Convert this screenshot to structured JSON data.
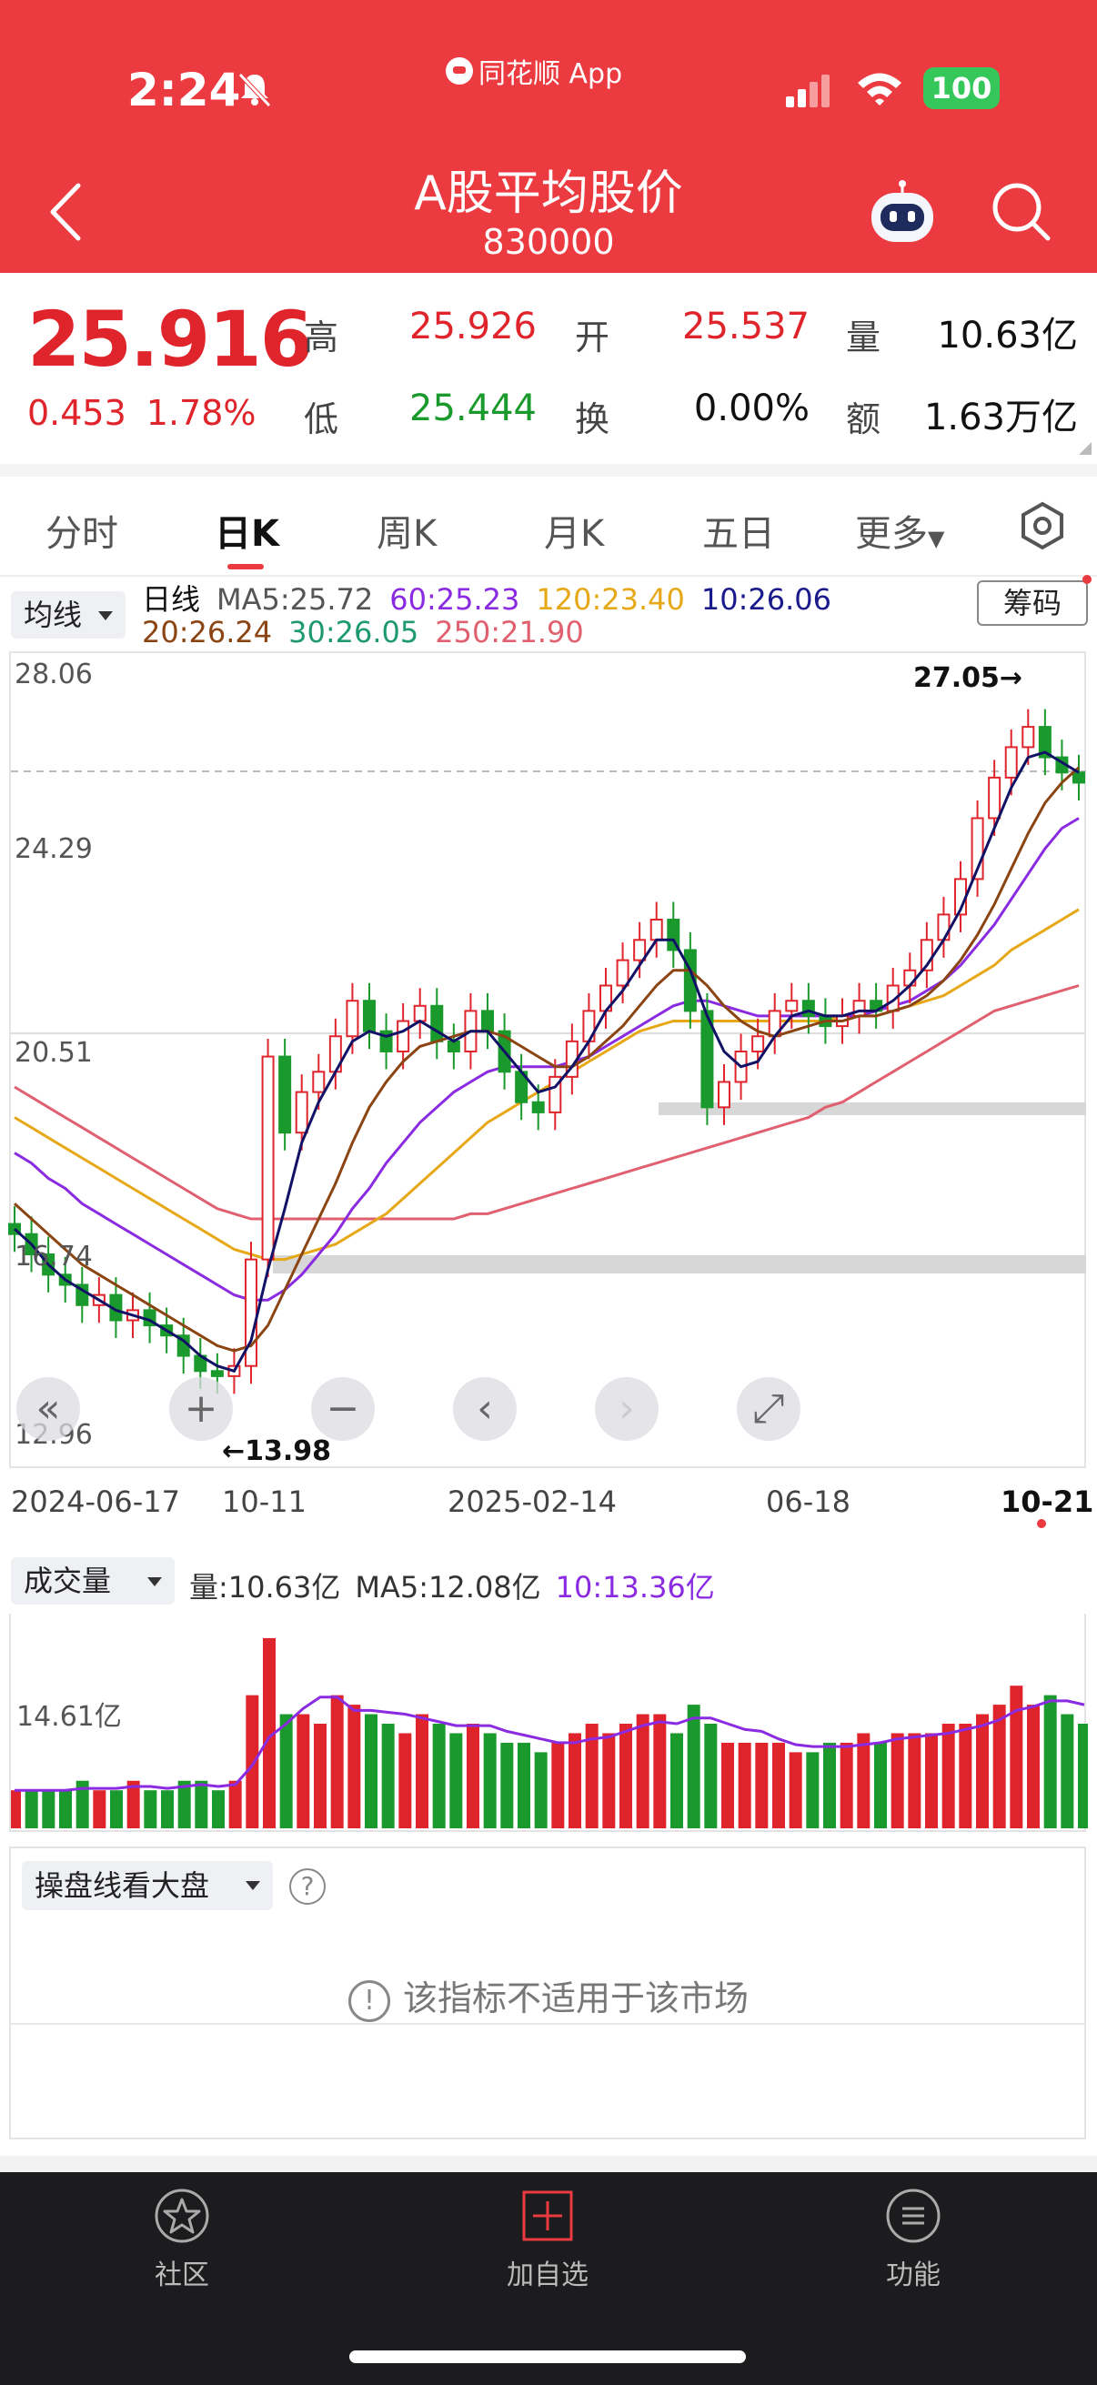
{
  "status_bar": {
    "time": "2:24",
    "app_name": "同花顺 App",
    "battery": "100"
  },
  "header": {
    "title": "A股平均股价",
    "code": "830000"
  },
  "quote": {
    "price": "25.916",
    "change_amount": "0.453",
    "change_percent": "1.78%",
    "high_label": "高",
    "high": "25.926",
    "low_label": "低",
    "low": "25.444",
    "open_label": "开",
    "open": "25.537",
    "turnover_label": "换",
    "turnover": "0.00%",
    "volume_label": "量",
    "volume": "10.63亿",
    "amount_label": "额",
    "amount": "1.63万亿"
  },
  "tabs": [
    "分时",
    "日K",
    "周K",
    "月K",
    "五日",
    "更多"
  ],
  "active_tab": "日K",
  "ma_legend": {
    "selector": "均线",
    "period": "日线",
    "ma5": "MA5:25.72",
    "ma60": "60:25.23",
    "ma120": "120:23.40",
    "ma10": "10:26.06",
    "ma20": "20:26.24",
    "ma30": "30:26.05",
    "ma250": "250:21.90",
    "chip_button": "筹码"
  },
  "colors": {
    "accent": "#ec3a41",
    "up": "#e0242b",
    "down": "#1a9a2c",
    "ma5": "#111166",
    "ma10": "#1a1a8c",
    "ma20": "#8b4513",
    "ma30": "#1e9a6e",
    "ma60": "#8a2be2",
    "ma120": "#e6a817",
    "ma250": "#e06070"
  },
  "chart_data": {
    "type": "candlestick",
    "price_ticks": [
      "28.06",
      "24.29",
      "20.51",
      "16.74",
      "12.96"
    ],
    "ylim": [
      12.96,
      28.06
    ],
    "x_labels": [
      "2024-06-17",
      "10-11",
      "2025-02-14",
      "06-18",
      "10-21"
    ],
    "annotations": {
      "high": "27.05→",
      "low": "←13.98"
    },
    "close_series": [
      17.0,
      16.6,
      16.2,
      16.0,
      15.6,
      15.8,
      15.3,
      15.5,
      15.2,
      15.0,
      14.6,
      14.3,
      14.2,
      14.4,
      16.5,
      20.5,
      19.0,
      19.8,
      20.2,
      20.9,
      21.6,
      21.0,
      20.6,
      21.2,
      21.5,
      20.8,
      20.6,
      21.4,
      21.0,
      20.2,
      19.6,
      19.4,
      20.1,
      20.8,
      21.4,
      21.9,
      22.4,
      22.8,
      23.2,
      22.6,
      21.4,
      19.5,
      20.0,
      20.6,
      20.9,
      21.4,
      21.6,
      21.3,
      21.1,
      21.3,
      21.6,
      21.4,
      21.9,
      22.2,
      22.8,
      23.3,
      24.0,
      25.2,
      26.0,
      26.6,
      27.0,
      26.4,
      26.1,
      25.9
    ],
    "ma5_series": [
      17.1,
      16.8,
      16.4,
      16.1,
      15.9,
      15.7,
      15.5,
      15.4,
      15.3,
      15.1,
      14.9,
      14.6,
      14.4,
      14.3,
      14.9,
      16.3,
      17.5,
      18.8,
      19.6,
      20.2,
      20.8,
      21.0,
      20.9,
      21.0,
      21.2,
      21.0,
      20.8,
      21.0,
      21.0,
      20.6,
      20.2,
      19.8,
      19.9,
      20.3,
      20.8,
      21.4,
      21.8,
      22.3,
      22.8,
      22.8,
      22.2,
      21.3,
      20.6,
      20.3,
      20.4,
      20.9,
      21.3,
      21.4,
      21.3,
      21.3,
      21.4,
      21.4,
      21.6,
      21.9,
      22.3,
      22.8,
      23.4,
      24.2,
      25.0,
      25.8,
      26.4,
      26.5,
      26.3,
      26.1
    ],
    "ma20_series": [
      17.6,
      17.3,
      17.0,
      16.7,
      16.4,
      16.2,
      16.0,
      15.8,
      15.6,
      15.4,
      15.2,
      15.0,
      14.8,
      14.7,
      14.8,
      15.2,
      15.9,
      16.6,
      17.3,
      18.0,
      18.8,
      19.5,
      20.0,
      20.4,
      20.7,
      20.8,
      20.9,
      21.0,
      21.0,
      20.9,
      20.7,
      20.5,
      20.3,
      20.3,
      20.5,
      20.8,
      21.1,
      21.5,
      21.9,
      22.2,
      22.2,
      21.9,
      21.5,
      21.2,
      21.0,
      20.9,
      21.0,
      21.1,
      21.2,
      21.2,
      21.3,
      21.3,
      21.4,
      21.5,
      21.7,
      22.0,
      22.4,
      22.9,
      23.5,
      24.2,
      24.9,
      25.5,
      25.9,
      26.2
    ],
    "ma60_series": [
      18.6,
      18.4,
      18.1,
      17.9,
      17.6,
      17.4,
      17.2,
      17.0,
      16.8,
      16.6,
      16.4,
      16.2,
      16.0,
      15.8,
      15.7,
      15.7,
      15.9,
      16.2,
      16.6,
      17.0,
      17.5,
      17.9,
      18.4,
      18.8,
      19.2,
      19.5,
      19.8,
      20.0,
      20.2,
      20.3,
      20.3,
      20.3,
      20.3,
      20.4,
      20.5,
      20.7,
      20.9,
      21.1,
      21.3,
      21.5,
      21.6,
      21.6,
      21.5,
      21.4,
      21.3,
      21.3,
      21.3,
      21.3,
      21.3,
      21.3,
      21.3,
      21.4,
      21.5,
      21.6,
      21.8,
      22.0,
      22.3,
      22.7,
      23.1,
      23.6,
      24.1,
      24.6,
      25.0,
      25.2
    ],
    "ma120_series": [
      19.3,
      19.1,
      18.9,
      18.7,
      18.5,
      18.3,
      18.1,
      17.9,
      17.7,
      17.5,
      17.3,
      17.1,
      16.9,
      16.7,
      16.6,
      16.5,
      16.5,
      16.6,
      16.7,
      16.8,
      17.0,
      17.2,
      17.4,
      17.7,
      18.0,
      18.3,
      18.6,
      18.9,
      19.2,
      19.4,
      19.6,
      19.8,
      20.0,
      20.2,
      20.4,
      20.6,
      20.8,
      21.0,
      21.1,
      21.2,
      21.2,
      21.2,
      21.2,
      21.2,
      21.2,
      21.2,
      21.2,
      21.2,
      21.2,
      21.3,
      21.3,
      21.3,
      21.4,
      21.5,
      21.6,
      21.7,
      21.9,
      22.1,
      22.3,
      22.6,
      22.8,
      23.0,
      23.2,
      23.4
    ],
    "ma250_series": [
      19.9,
      19.7,
      19.5,
      19.3,
      19.1,
      18.9,
      18.7,
      18.5,
      18.3,
      18.1,
      17.9,
      17.7,
      17.5,
      17.4,
      17.3,
      17.3,
      17.3,
      17.3,
      17.3,
      17.3,
      17.3,
      17.3,
      17.3,
      17.3,
      17.3,
      17.3,
      17.3,
      17.4,
      17.4,
      17.5,
      17.6,
      17.7,
      17.8,
      17.9,
      18.0,
      18.1,
      18.2,
      18.3,
      18.4,
      18.5,
      18.6,
      18.7,
      18.8,
      18.9,
      19.0,
      19.1,
      19.2,
      19.3,
      19.5,
      19.6,
      19.8,
      20.0,
      20.2,
      20.4,
      20.6,
      20.8,
      21.0,
      21.2,
      21.4,
      21.5,
      21.6,
      21.7,
      21.8,
      21.9
    ],
    "volume_series": [
      4,
      4,
      4,
      4,
      5,
      4,
      4,
      5,
      4,
      4,
      5,
      5,
      4,
      5,
      14,
      20,
      12,
      12,
      11,
      14,
      13,
      12,
      11,
      10,
      12,
      11,
      10,
      11,
      10,
      9,
      9,
      8,
      9,
      10,
      11,
      10,
      11,
      12,
      12,
      10,
      13,
      11,
      9,
      9,
      9,
      9,
      8,
      8,
      9,
      9,
      10,
      9,
      10,
      10,
      10,
      11,
      11,
      12,
      13,
      15,
      13,
      14,
      12,
      11
    ]
  },
  "volume_panel": {
    "selector": "成交量",
    "vol": "量:10.63亿",
    "ma5": "MA5:12.08亿",
    "ma10": "10:13.36亿",
    "tick": "14.61亿"
  },
  "indicator_panel": {
    "selector": "操盘线看大盘",
    "message": "该指标不适用于该市场"
  },
  "bottom_nav": [
    {
      "label": "社区",
      "icon": "star-badge-icon"
    },
    {
      "label": "加自选",
      "icon": "add-watchlist-icon"
    },
    {
      "label": "功能",
      "icon": "menu-circle-icon"
    }
  ]
}
